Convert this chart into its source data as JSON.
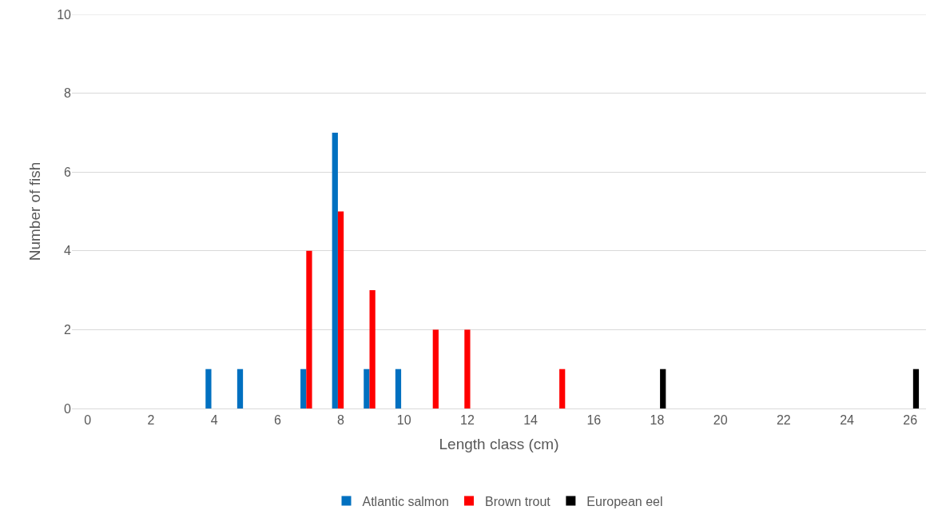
{
  "chart_data": {
    "type": "bar",
    "xlabel": "Length class (cm)",
    "ylabel": "Number of fish",
    "x": [
      0,
      1,
      2,
      3,
      4,
      5,
      6,
      7,
      8,
      9,
      10,
      11,
      12,
      13,
      14,
      15,
      16,
      17,
      18,
      19,
      20,
      21,
      22,
      23,
      24,
      25,
      26
    ],
    "series": [
      {
        "name": "Atlantic salmon",
        "color": "#0070c0",
        "values": [
          0,
          0,
          0,
          0,
          1,
          1,
          0,
          1,
          7,
          1,
          1,
          0,
          0,
          0,
          0,
          0,
          0,
          0,
          0,
          0,
          0,
          0,
          0,
          0,
          0,
          0,
          0
        ]
      },
      {
        "name": "Brown trout",
        "color": "#ff0000",
        "values": [
          0,
          0,
          0,
          0,
          0,
          0,
          0,
          4,
          5,
          3,
          0,
          2,
          2,
          0,
          0,
          1,
          0,
          0,
          0,
          0,
          0,
          0,
          0,
          0,
          0,
          0,
          0
        ]
      },
      {
        "name": "European eel",
        "color": "#000000",
        "values": [
          0,
          0,
          0,
          0,
          0,
          0,
          0,
          0,
          0,
          0,
          0,
          0,
          0,
          0,
          0,
          0,
          0,
          0,
          1,
          0,
          0,
          0,
          0,
          0,
          0,
          0,
          1
        ]
      }
    ],
    "xlim": [
      -0.5,
      26.5
    ],
    "xticks": [
      0,
      2,
      4,
      6,
      8,
      10,
      12,
      14,
      16,
      18,
      20,
      22,
      24,
      26
    ],
    "ylim": [
      0,
      10
    ],
    "yticks": [
      0,
      2,
      4,
      6,
      8,
      10
    ],
    "grid": "y",
    "legend": "bottom"
  }
}
